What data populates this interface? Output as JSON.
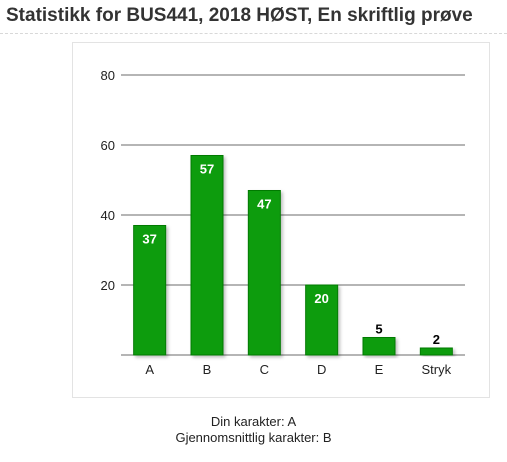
{
  "page": {
    "title": "Statistikk for BUS441, 2018 HØST, En skriftlig prøve"
  },
  "chart_data": {
    "type": "bar",
    "categories": [
      "A",
      "B",
      "C",
      "D",
      "E",
      "Stryk"
    ],
    "values": [
      37,
      57,
      47,
      20,
      5,
      2
    ],
    "ylim": [
      0,
      80
    ],
    "yticks": [
      20,
      40,
      60,
      80
    ],
    "grid": true,
    "legend": "none",
    "bar_color": "#0a9c0a",
    "bar_edge_color": "#067a06",
    "grid_color": "#6b6b6b",
    "data_label_inside_color": "#ffffff",
    "data_label_outside_color": "#000000"
  },
  "grades": {
    "own": "Din karakter: A",
    "average": "Gjennomsnittlig karakter: B"
  }
}
